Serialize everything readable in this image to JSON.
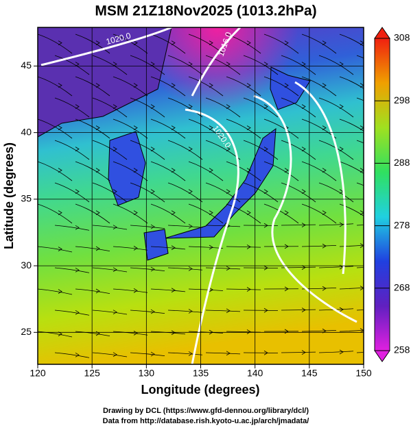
{
  "chart_data": {
    "type": "map",
    "title": "MSM 21Z18Nov2025 (1013.2hPa)",
    "xlabel": "Longitude (degrees)",
    "ylabel": "Latitude  (degrees)",
    "xlim": [
      120,
      150
    ],
    "ylim": [
      22.6,
      47.9
    ],
    "xticks": [
      120,
      125,
      130,
      135,
      140,
      145,
      150
    ],
    "yticks": [
      25,
      30,
      35,
      40,
      45
    ],
    "grid": true,
    "contour_labels": [
      "1020.0",
      "1016.0",
      "1020.0"
    ],
    "colorbar": {
      "lim": [
        258,
        308
      ],
      "ticks": [
        258,
        268,
        278,
        288,
        298,
        308
      ],
      "colors": [
        "#e020e0",
        "#6020c0",
        "#2040e0",
        "#20d0e0",
        "#30e060",
        "#a0e020",
        "#f0a000",
        "#f02010"
      ]
    },
    "footer": [
      "Drawing by DCL (https://www.gfd-dennou.org/library/dcl/)",
      "Data from http://database.rish.kyoto-u.ac.jp/arch/jmadata/"
    ]
  }
}
